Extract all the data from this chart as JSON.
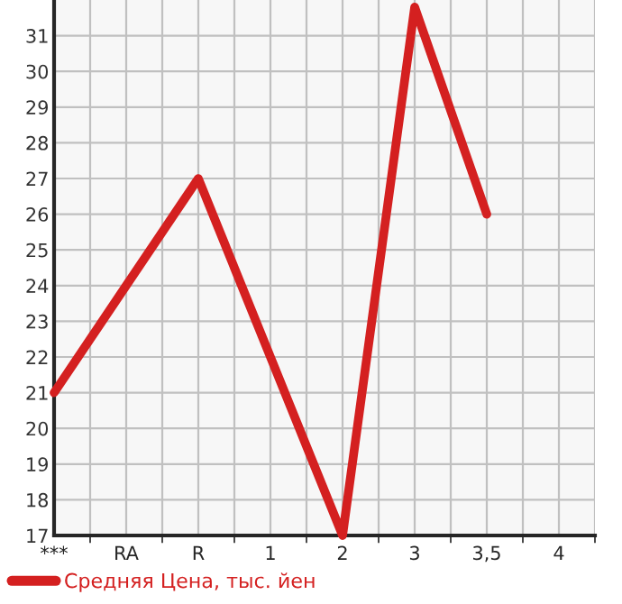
{
  "chart_data": {
    "type": "line",
    "categories": [
      "***",
      "RA",
      "R",
      "1",
      "2",
      "3",
      "3,5",
      "4"
    ],
    "series": [
      {
        "name": "Средняя Цена, тыс. йен",
        "color": "#d42020",
        "values": [
          21,
          24,
          27,
          22,
          17,
          31.8,
          26,
          null
        ]
      }
    ],
    "ylim": [
      17,
      32
    ],
    "yticks": [
      17,
      18,
      19,
      20,
      21,
      22,
      23,
      24,
      25,
      26,
      27,
      28,
      29,
      30,
      31
    ],
    "grid": true,
    "legend": "bottom",
    "marker": "none",
    "line_style": "solid"
  }
}
